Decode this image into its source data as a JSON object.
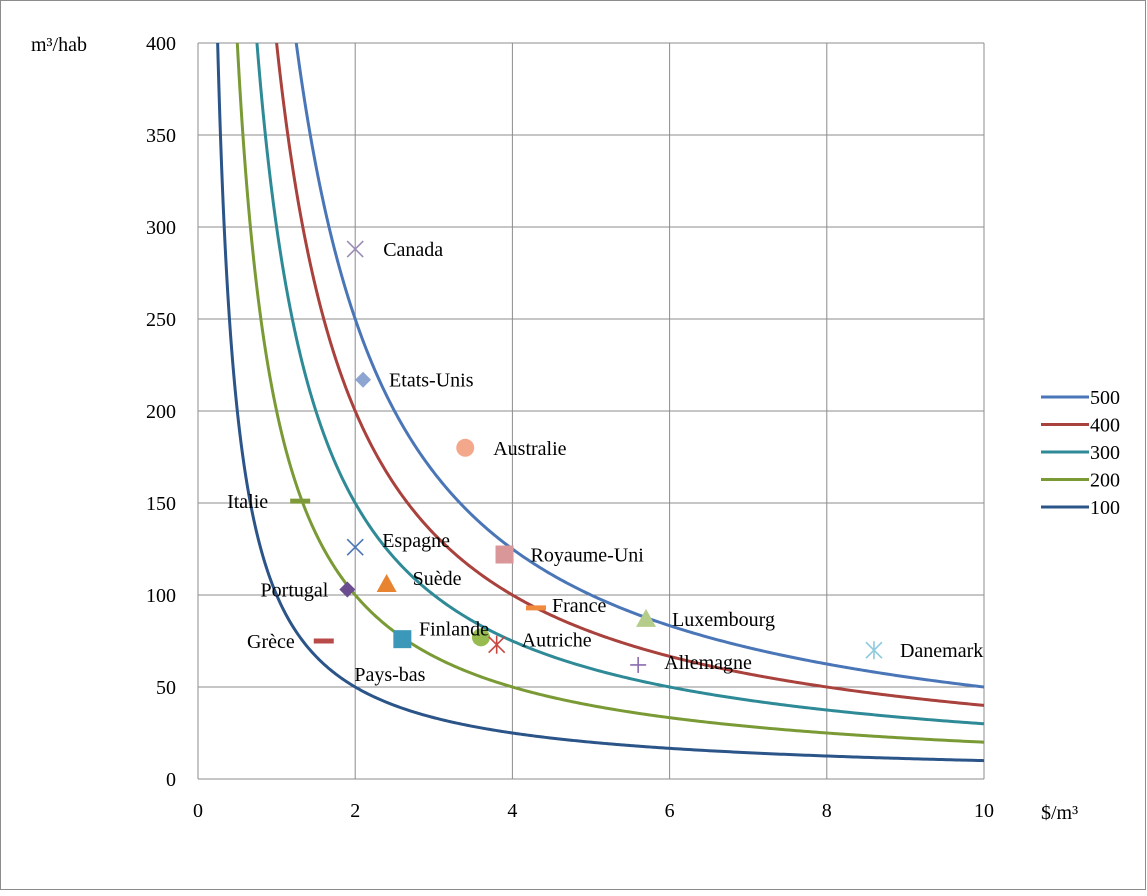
{
  "chart_data": {
    "type": "scatter",
    "ylabel": "m³/hab",
    "xlabel": "$/m³",
    "xlim": [
      0,
      10
    ],
    "ylim": [
      0,
      400
    ],
    "xticks": [
      0,
      2,
      4,
      6,
      8,
      10
    ],
    "yticks": [
      0,
      50,
      100,
      150,
      200,
      250,
      300,
      350,
      400
    ],
    "grid": true,
    "legend_position": "right",
    "curves": [
      {
        "name": "500",
        "k": 500,
        "color": "#4a76b8"
      },
      {
        "name": "400",
        "k": 400,
        "color": "#a9413c"
      },
      {
        "name": "300",
        "k": 300,
        "color": "#2f8a97"
      },
      {
        "name": "200",
        "k": 200,
        "color": "#7a9a35"
      },
      {
        "name": "100",
        "k": 100,
        "color": "#2b5488"
      }
    ],
    "points": [
      {
        "label": "Canada",
        "x": 2.0,
        "y": 288,
        "marker": "x",
        "color": "#9b8bb5"
      },
      {
        "label": "Etats-Unis",
        "x": 2.1,
        "y": 217,
        "marker": "diamond",
        "color": "#8ea5d2"
      },
      {
        "label": "Australie",
        "x": 3.4,
        "y": 180,
        "marker": "circle",
        "color": "#f4a88b"
      },
      {
        "label": "Italie",
        "x": 1.3,
        "y": 151,
        "marker": "dash",
        "color": "#7f9a3a"
      },
      {
        "label": "Espagne",
        "x": 2.0,
        "y": 126,
        "marker": "x",
        "color": "#4a76b8"
      },
      {
        "label": "Royaume-Uni",
        "x": 3.9,
        "y": 122,
        "marker": "square",
        "color": "#d9979a"
      },
      {
        "label": "Suède",
        "x": 2.4,
        "y": 106,
        "marker": "triangle",
        "color": "#e8832f"
      },
      {
        "label": "Portugal",
        "x": 1.9,
        "y": 103,
        "marker": "diamond",
        "color": "#6b4c8f"
      },
      {
        "label": "France",
        "x": 4.3,
        "y": 93,
        "marker": "dash",
        "color": "#f08a3c"
      },
      {
        "label": "Luxembourg",
        "x": 5.7,
        "y": 87,
        "marker": "triangle",
        "color": "#b6cc8a"
      },
      {
        "label": "Finlande",
        "x": 3.6,
        "y": 77,
        "marker": "circle",
        "color": "#97bb4f"
      },
      {
        "label": "Grèce",
        "x": 1.6,
        "y": 75,
        "marker": "dash",
        "color": "#b84a48"
      },
      {
        "label": "Pays-bas",
        "x": 2.6,
        "y": 76,
        "marker": "square",
        "color": "#3b98b8"
      },
      {
        "label": "Autriche",
        "x": 3.8,
        "y": 73,
        "marker": "star",
        "color": "#c8463f"
      },
      {
        "label": "Danemark",
        "x": 8.6,
        "y": 70,
        "marker": "star",
        "color": "#8ccadc"
      },
      {
        "label": "Allemagne",
        "x": 5.6,
        "y": 62,
        "marker": "plus",
        "color": "#8a6bb0"
      }
    ]
  }
}
